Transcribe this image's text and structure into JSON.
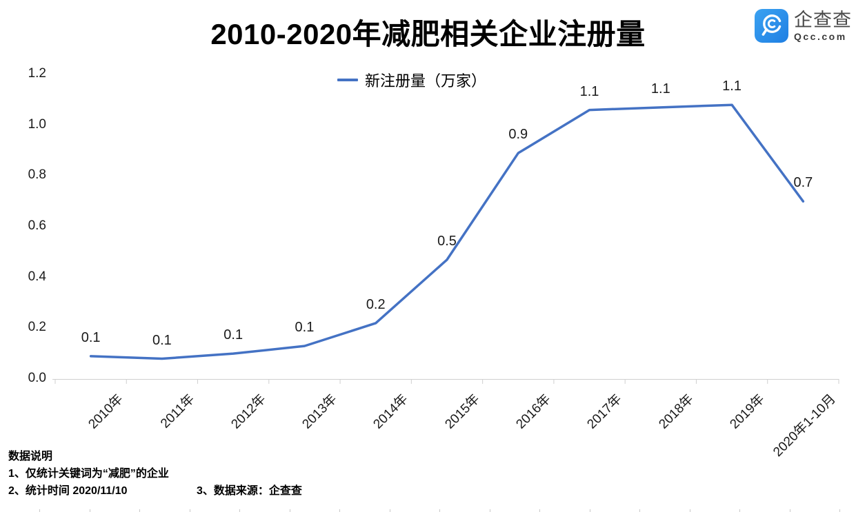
{
  "header": {
    "title": "2010-2020年减肥相关企业注册量",
    "logo": {
      "name": "企查查",
      "domain": "Qcc.com",
      "brand_color": "#2B8CE8"
    }
  },
  "legend": {
    "label": "新注册量（万家）"
  },
  "chart_data": {
    "type": "line",
    "title": "2010-2020年减肥相关企业注册量",
    "categories": [
      "2010年",
      "2011年",
      "2012年",
      "2013年",
      "2014年",
      "2015年",
      "2016年",
      "2017年",
      "2018年",
      "2019年",
      "2020年1-10月"
    ],
    "series": [
      {
        "name": "新注册量（万家）",
        "values": [
          0.1,
          0.1,
          0.1,
          0.1,
          0.2,
          0.5,
          0.9,
          1.1,
          1.1,
          1.1,
          0.7
        ],
        "values_precise": [
          0.09,
          0.08,
          0.1,
          0.13,
          0.22,
          0.47,
          0.89,
          1.06,
          1.07,
          1.08,
          0.7
        ],
        "labels": [
          "0.1",
          "0.1",
          "0.1",
          "0.1",
          "0.2",
          "0.5",
          "0.9",
          "1.1",
          "1.1",
          "1.1",
          "0.7"
        ],
        "color": "#4472C4"
      }
    ],
    "xlabel": "",
    "ylabel": "",
    "ylim": [
      0,
      1.2
    ],
    "yticks": [
      "0.0",
      "0.2",
      "0.4",
      "0.6",
      "0.8",
      "1.0",
      "1.2"
    ],
    "grid": false,
    "legend_position": "top-center",
    "axis_color": "#cfcfcf"
  },
  "footer": {
    "heading": "数据说明",
    "note1": "1、仅统计关键词为“减肥”的企业",
    "note2": "2、统计时间 2020/11/10",
    "note3": "3、数据来源：企查查"
  }
}
